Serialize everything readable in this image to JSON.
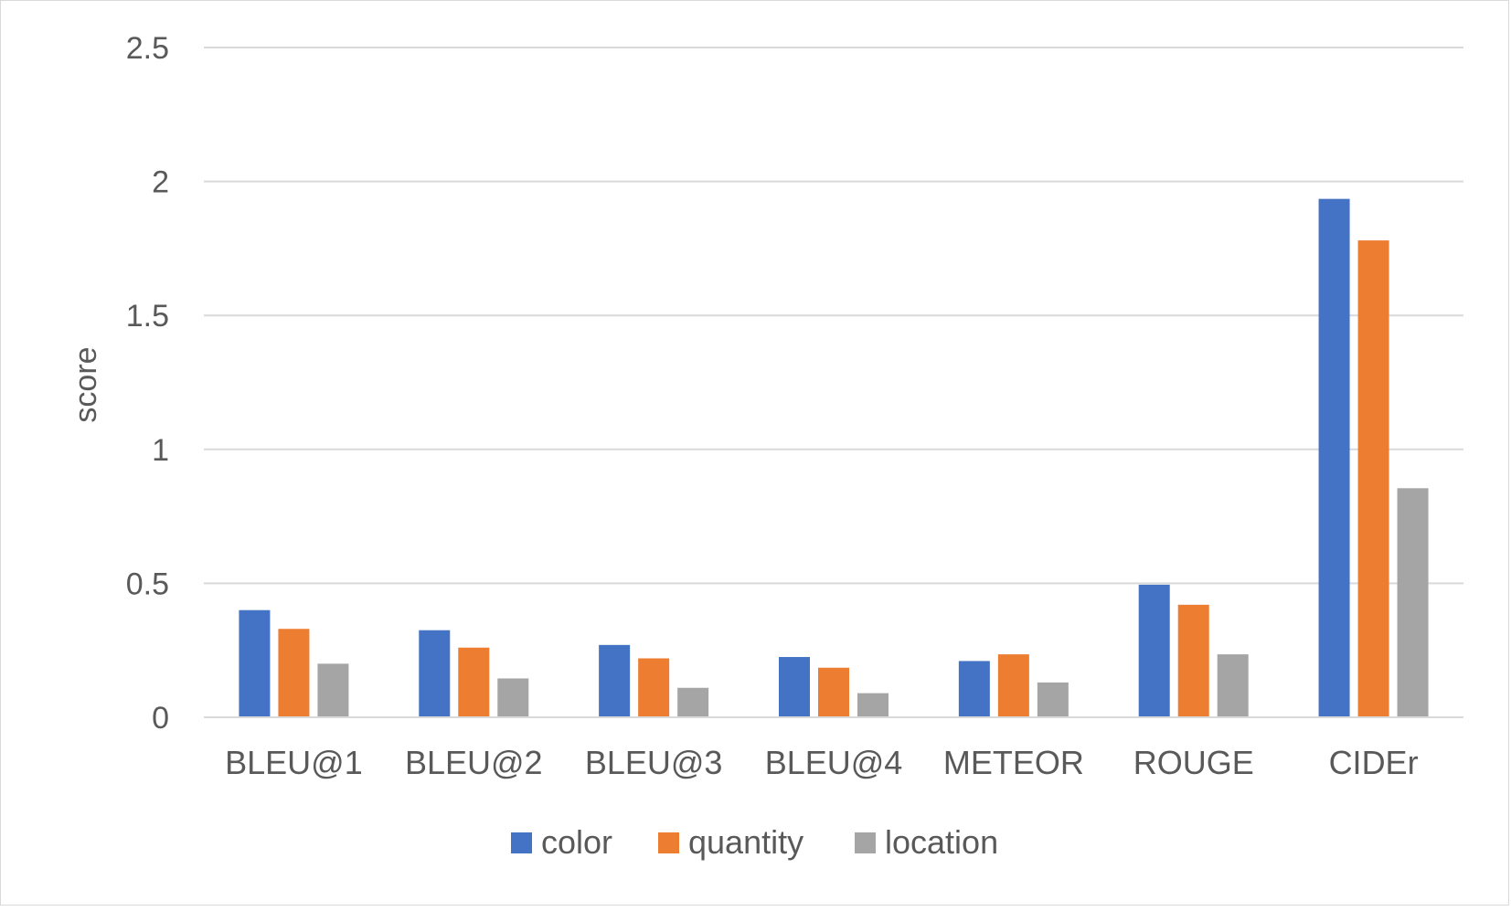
{
  "chart_data": {
    "type": "bar",
    "title": "",
    "xlabel": "",
    "ylabel": "score",
    "ylim": [
      0,
      2.5
    ],
    "yticks": [
      "0",
      "0.5",
      "1",
      "1.5",
      "2",
      "2.5"
    ],
    "grid": true,
    "legend_position": "bottom",
    "categories": [
      "BLEU@1",
      "BLEU@2",
      "BLEU@3",
      "BLEU@4",
      "METEOR",
      "ROUGE",
      "CIDEr"
    ],
    "series": [
      {
        "name": "color",
        "color": "#4472c4",
        "values": [
          0.4,
          0.325,
          0.27,
          0.225,
          0.21,
          0.495,
          1.935
        ]
      },
      {
        "name": "quantity",
        "color": "#ed7d31",
        "values": [
          0.33,
          0.26,
          0.22,
          0.185,
          0.235,
          0.42,
          1.78
        ]
      },
      {
        "name": "location",
        "color": "#a5a5a5",
        "values": [
          0.2,
          0.145,
          0.11,
          0.09,
          0.13,
          0.235,
          0.855
        ]
      }
    ]
  }
}
